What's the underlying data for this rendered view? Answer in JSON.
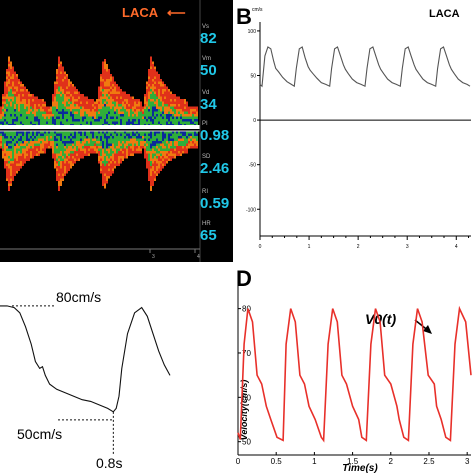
{
  "colors": {
    "doppler_red": "#e0301a",
    "doppler_orange": "#f07a10",
    "doppler_green": "#2fae3a",
    "doppler_blue": "#0a2a9a",
    "cyan_value": "#20c8e8",
    "laca_orange": "#ff6a2a",
    "velocity_red": "#e8302a"
  },
  "panel_a": {
    "vessel_label": "LACA",
    "arrow_glyph": "⟵",
    "params": [
      {
        "abbr": "Vs",
        "value": "82"
      },
      {
        "abbr": "Vm",
        "value": "50"
      },
      {
        "abbr": "Vd",
        "value": "34"
      },
      {
        "abbr": "PI",
        "value": "0.98"
      },
      {
        "abbr": "SD",
        "value": "2.46"
      },
      {
        "abbr": "RI",
        "value": "0.59"
      },
      {
        "abbr": "HR",
        "value": "65"
      }
    ],
    "x_ticks": [
      "3",
      "4"
    ]
  },
  "chart_data": [
    {
      "panel": "B",
      "type": "line",
      "title": "LACA",
      "panel_letter": "B",
      "y_unit_glyph": "cm/s",
      "y_ticks": [
        "100",
        "50",
        "0",
        "-50",
        "-100"
      ],
      "x_ticks": [
        "0",
        "1",
        "2",
        "3",
        "4"
      ],
      "xlim": [
        0,
        4.3
      ],
      "ylim": [
        -130,
        110
      ],
      "series": [
        {
          "x": [
            0.0,
            0.04,
            0.1,
            0.16,
            0.22,
            0.28,
            0.32,
            0.38,
            0.46,
            0.55,
            0.64,
            0.7,
            0.74,
            0.8,
            0.86,
            0.92,
            0.98,
            1.02,
            1.08,
            1.16,
            1.25,
            1.34,
            1.42,
            1.46,
            1.52,
            1.58,
            1.64,
            1.7,
            1.74,
            1.8,
            1.88,
            1.97,
            2.06,
            2.14,
            2.18,
            2.24,
            2.3,
            2.36,
            2.42,
            2.46,
            2.52,
            2.6,
            2.69,
            2.78,
            2.86,
            2.9,
            2.96,
            3.02,
            3.08,
            3.14,
            3.18,
            3.24,
            3.32,
            3.41,
            3.5,
            3.58,
            3.62,
            3.68,
            3.74,
            3.8,
            3.86,
            3.9,
            3.96,
            4.04,
            4.13,
            4.22,
            4.28
          ],
          "y": [
            40,
            38,
            72,
            82,
            80,
            66,
            58,
            54,
            48,
            43,
            40,
            38,
            58,
            80,
            82,
            70,
            60,
            56,
            52,
            47,
            42,
            40,
            38,
            58,
            80,
            82,
            72,
            62,
            57,
            52,
            46,
            42,
            40,
            38,
            58,
            80,
            82,
            72,
            62,
            57,
            52,
            46,
            42,
            40,
            38,
            58,
            80,
            82,
            72,
            62,
            57,
            52,
            46,
            42,
            40,
            38,
            58,
            80,
            82,
            72,
            62,
            57,
            52,
            46,
            42,
            40,
            38
          ]
        }
      ]
    },
    {
      "panel": "C",
      "type": "line",
      "annotations": {
        "top": "80cm/s",
        "bottom": "50cm/s",
        "duration": "0.8s"
      },
      "xlim": [
        -0.1,
        1.1
      ],
      "ylim": [
        46,
        84
      ],
      "series": [
        {
          "x": [
            -0.1,
            -0.05,
            0.0,
            0.04,
            0.08,
            0.12,
            0.15,
            0.18,
            0.2,
            0.22,
            0.25,
            0.3,
            0.36,
            0.42,
            0.48,
            0.54,
            0.6,
            0.66,
            0.7,
            0.72,
            0.74,
            0.76,
            0.8,
            0.85,
            0.9,
            0.94,
            0.98,
            1.02,
            1.06,
            1.1
          ],
          "y": [
            80,
            80,
            79.5,
            78,
            74,
            69,
            64,
            62,
            62.5,
            60,
            57.5,
            56,
            55,
            54,
            53,
            52.5,
            51.5,
            50.5,
            49.5,
            50.5,
            54,
            62,
            72,
            78,
            79.5,
            77,
            72,
            67,
            63,
            60
          ]
        }
      ]
    },
    {
      "panel": "D",
      "type": "line",
      "panel_letter": "D",
      "label": "V0(t)",
      "xlabel": "Time(s)",
      "ylabel": "Velocity(cm/s)",
      "x_ticks": [
        "0",
        "0.5",
        "1",
        "1.5",
        "2",
        "2.5",
        "3"
      ],
      "x_tick_values": [
        0,
        0.5,
        1,
        1.5,
        2,
        2.5,
        3
      ],
      "y_ticks": [
        "50",
        "60",
        "70",
        "80"
      ],
      "y_tick_values": [
        50,
        60,
        70,
        80
      ],
      "xlim": [
        0,
        3.05
      ],
      "ylim": [
        47,
        86
      ],
      "series": [
        {
          "x": [
            0.0,
            0.03,
            0.08,
            0.13,
            0.19,
            0.25,
            0.31,
            0.37,
            0.43,
            0.51,
            0.59,
            0.63,
            0.69,
            0.75,
            0.81,
            0.87,
            0.93,
            1.01,
            1.09,
            1.12,
            1.18,
            1.24,
            1.3,
            1.36,
            1.42,
            1.5,
            1.58,
            1.62,
            1.68,
            1.74,
            1.8,
            1.86,
            1.92,
            2.0,
            2.08,
            2.11,
            2.17,
            2.23,
            2.29,
            2.35,
            2.41,
            2.49,
            2.57,
            2.6,
            2.66,
            2.72,
            2.78,
            2.84,
            2.9,
            2.98,
            3.05
          ],
          "y": [
            52,
            50.5,
            72,
            80,
            77,
            65,
            63,
            58,
            55,
            51,
            50.3,
            72,
            80,
            77,
            65,
            63,
            58,
            55,
            51,
            50.3,
            72,
            80,
            77,
            65,
            63,
            58,
            55,
            51,
            50.3,
            72,
            80,
            77,
            65,
            63,
            58,
            55,
            51,
            50.3,
            72,
            80,
            77,
            65,
            63,
            58,
            55,
            51,
            50.3,
            72,
            80,
            77,
            65
          ]
        }
      ]
    }
  ]
}
